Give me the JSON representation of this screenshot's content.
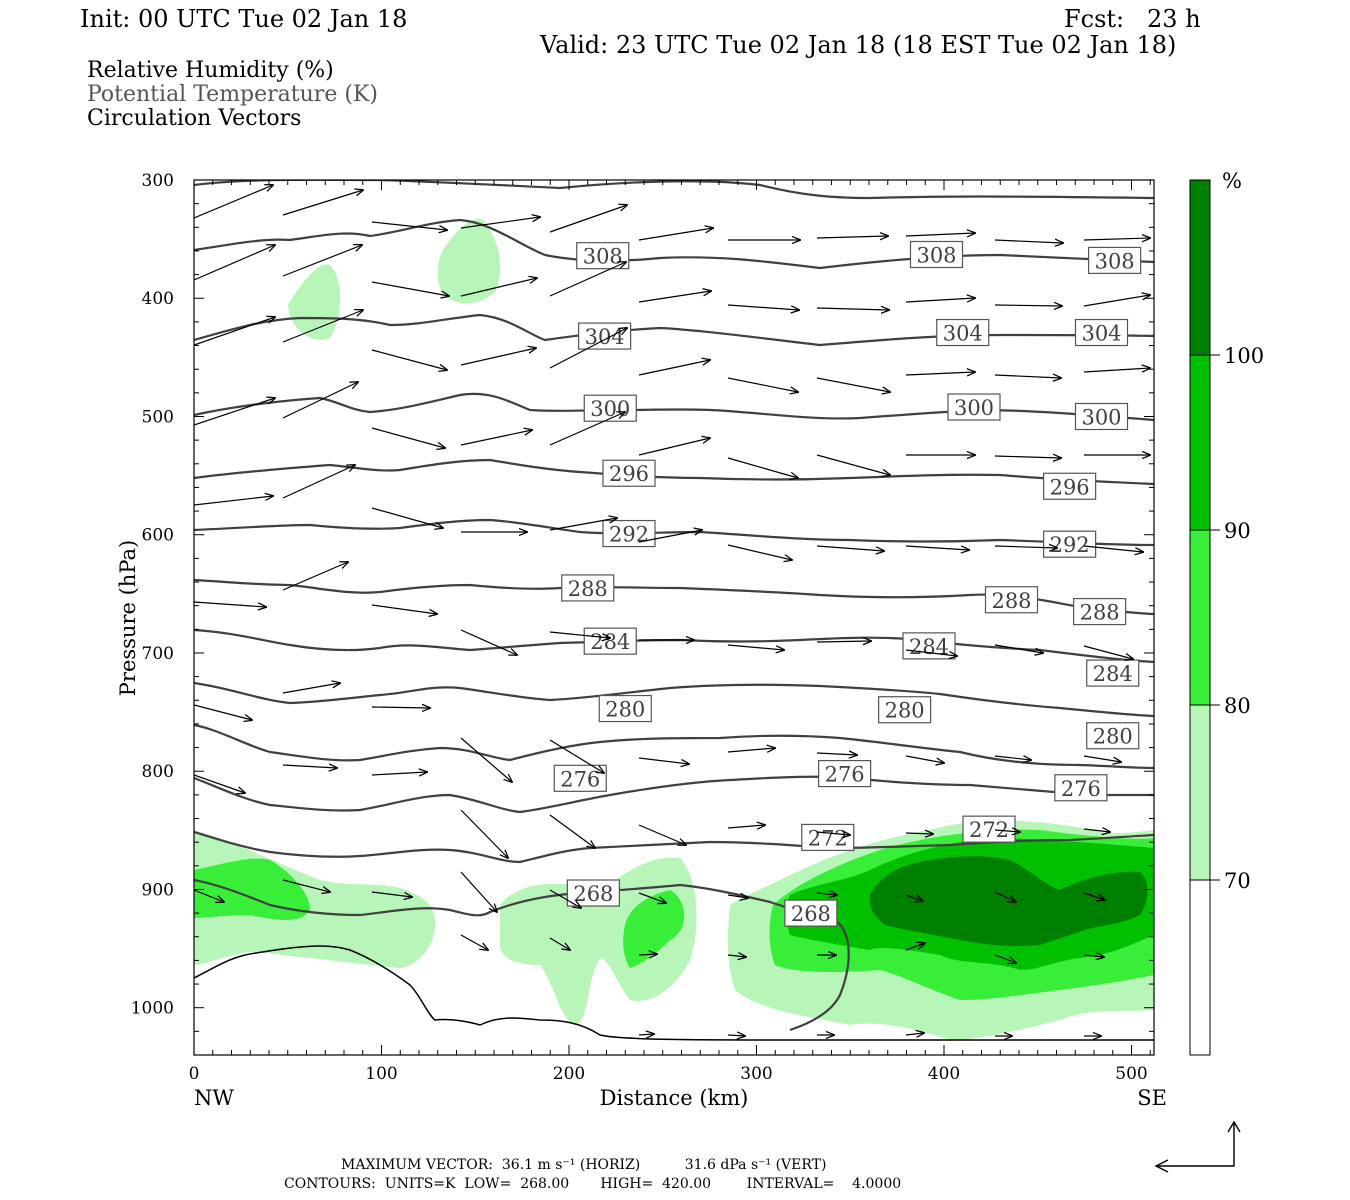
{
  "header": {
    "init": "Init: 00 UTC Tue 02 Jan 18",
    "fcst": "Fcst:   23 h",
    "valid": "Valid: 23 UTC Tue 02 Jan 18 (18 EST Tue 02 Jan 18)"
  },
  "fields": {
    "rh": "Relative Humidity (%)",
    "theta": "Potential Temperature (K)",
    "vectors": "Circulation Vectors"
  },
  "footer": {
    "max_vector": "MAXIMUM VECTOR:  36.1 m s⁻¹ (HORIZ)          31.6 dPa s⁻¹ (VERT)",
    "contours": "CONTOURS:  UNITS=K  LOW=  268.00       HIGH=  420.00        INTERVAL=    4.0000"
  },
  "colors": {
    "rh_70_80": "#b8f5b8",
    "rh_80_90": "#38ee38",
    "rh_90_100": "#00c000",
    "rh_100": "#008000",
    "contour": "#404040",
    "arrow": "#000000"
  },
  "chart_data": {
    "type": "cross-section",
    "xlabel": "Distance (km)",
    "ylabel": "Pressure (hPa)",
    "xlim": [
      0,
      512
    ],
    "ylim": [
      1040,
      300
    ],
    "x_ticks": [
      0,
      100,
      200,
      300,
      400,
      500
    ],
    "y_ticks": [
      300,
      400,
      500,
      600,
      700,
      800,
      900,
      1000
    ],
    "x_end_labels": [
      "NW",
      "SE"
    ],
    "colorbar": {
      "unit": "%",
      "levels": [
        70,
        80,
        90,
        100
      ]
    },
    "theta_labels": [
      {
        "value": "308",
        "x": 218,
        "p": 364
      },
      {
        "value": "308",
        "x": 396,
        "p": 363
      },
      {
        "value": "308",
        "x": 491,
        "p": 368
      },
      {
        "value": "304",
        "x": 219,
        "p": 432
      },
      {
        "value": "304",
        "x": 410,
        "p": 429
      },
      {
        "value": "304",
        "x": 484,
        "p": 429
      },
      {
        "value": "300",
        "x": 222,
        "p": 493
      },
      {
        "value": "300",
        "x": 416,
        "p": 492
      },
      {
        "value": "300",
        "x": 484,
        "p": 500
      },
      {
        "value": "296",
        "x": 232,
        "p": 548
      },
      {
        "value": "296",
        "x": 467,
        "p": 559
      },
      {
        "value": "292",
        "x": 232,
        "p": 599
      },
      {
        "value": "292",
        "x": 467,
        "p": 608
      },
      {
        "value": "288",
        "x": 210,
        "p": 645
      },
      {
        "value": "288",
        "x": 436,
        "p": 655
      },
      {
        "value": "288",
        "x": 483,
        "p": 665
      },
      {
        "value": "284",
        "x": 222,
        "p": 690
      },
      {
        "value": "284",
        "x": 392,
        "p": 694
      },
      {
        "value": "284",
        "x": 490,
        "p": 717
      },
      {
        "value": "280",
        "x": 230,
        "p": 747
      },
      {
        "value": "280",
        "x": 379,
        "p": 748
      },
      {
        "value": "280",
        "x": 490,
        "p": 770
      },
      {
        "value": "276",
        "x": 206,
        "p": 806
      },
      {
        "value": "276",
        "x": 347,
        "p": 802
      },
      {
        "value": "276",
        "x": 473,
        "p": 814
      },
      {
        "value": "272",
        "x": 338,
        "p": 856
      },
      {
        "value": "272",
        "x": 424,
        "p": 849
      },
      {
        "value": "268",
        "x": 213,
        "p": 903
      },
      {
        "value": "268",
        "x": 329,
        "p": 920
      }
    ]
  }
}
